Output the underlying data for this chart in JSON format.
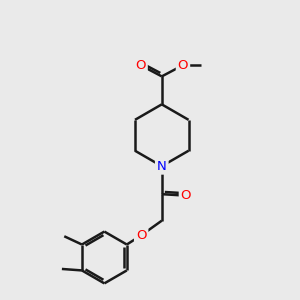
{
  "background_color": "#eaeaea",
  "bond_color": "#1a1a1a",
  "oxygen_color": "#ff0000",
  "nitrogen_color": "#0000ff",
  "lw": 1.8,
  "fs": 9.5,
  "xlim": [
    0,
    10
  ],
  "ylim": [
    0,
    10
  ]
}
